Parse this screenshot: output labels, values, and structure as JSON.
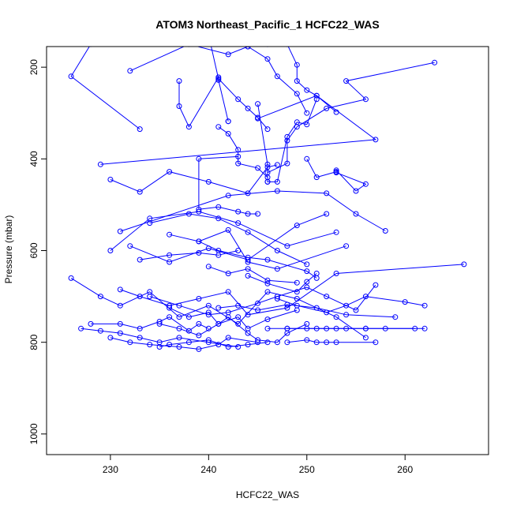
{
  "chart_data": {
    "type": "line",
    "title": "ATOM3 Northeast_Pacific_1 HCFC22_WAS",
    "xlabel": "HCFC22_WAS",
    "ylabel": "Pressure (mbar)",
    "xlim": [
      223.5,
      268.5
    ],
    "ylim": [
      1045,
      155
    ],
    "y_reversed": true,
    "x_ticks": [
      230,
      240,
      250,
      260
    ],
    "y_ticks": [
      200,
      400,
      600,
      800,
      1000
    ],
    "grid": false,
    "legend": "none",
    "color": "#0000ff",
    "marker": "open-circle",
    "series": [
      {
        "x": [
          228,
          226,
          233
        ],
        "y": [
          150,
          220,
          335
        ]
      },
      {
        "x": [
          232,
          238,
          242,
          244,
          246
        ],
        "y": [
          208,
          150,
          172,
          155,
          150
        ]
      },
      {
        "x": [
          237,
          237,
          238,
          241,
          241,
          242,
          242
        ],
        "y": [
          230,
          285,
          330,
          222,
          228,
          318,
          318
        ]
      },
      {
        "x": [
          240,
          241,
          243,
          244,
          245,
          246
        ],
        "y": [
          130,
          225,
          270,
          290,
          310,
          335
        ]
      },
      {
        "x": [
          248,
          249,
          249,
          250,
          251,
          253
        ],
        "y": [
          150,
          195,
          230,
          250,
          262,
          298
        ]
      },
      {
        "x": [
          229,
          257,
          251,
          245
        ],
        "y": [
          412,
          358,
          262,
          312
        ]
      },
      {
        "x": [
          230,
          233,
          236,
          240,
          244,
          246,
          247
        ],
        "y": [
          445,
          472,
          428,
          450,
          475,
          418,
          413
        ]
      },
      {
        "x": [
          244,
          246,
          247,
          249,
          250
        ],
        "y": [
          155,
          182,
          220,
          258,
          300
        ]
      },
      {
        "x": [
          245,
          246,
          246,
          247,
          248,
          249,
          250,
          251
        ],
        "y": [
          280,
          412,
          450,
          450,
          352,
          320,
          325,
          270
        ]
      },
      {
        "x": [
          263,
          254,
          256,
          252,
          249,
          248,
          248,
          246
        ],
        "y": [
          190,
          230,
          270,
          290,
          330,
          360,
          410,
          430
        ]
      },
      {
        "x": [
          243,
          239,
          239,
          241,
          243,
          244,
          245
        ],
        "y": [
          395,
          400,
          510,
          505,
          515,
          520,
          520
        ]
      },
      {
        "x": [
          241,
          242,
          243,
          243,
          245,
          246,
          246
        ],
        "y": [
          330,
          345,
          380,
          410,
          420,
          440,
          450
        ]
      },
      {
        "x": [
          250,
          251,
          253,
          253,
          255,
          256,
          253
        ],
        "y": [
          400,
          440,
          428,
          425,
          470,
          455,
          430
        ]
      },
      {
        "x": [
          231,
          242,
          247,
          252,
          255,
          258
        ],
        "y": [
          558,
          480,
          470,
          475,
          520,
          557
        ]
      },
      {
        "x": [
          234,
          238,
          241,
          244,
          247,
          250
        ],
        "y": [
          540,
          520,
          530,
          560,
          600,
          630
        ]
      },
      {
        "x": [
          232,
          236,
          240,
          244,
          249,
          252
        ],
        "y": [
          590,
          625,
          595,
          620,
          545,
          520
        ]
      },
      {
        "x": [
          230,
          234,
          239,
          243,
          248,
          253
        ],
        "y": [
          600,
          530,
          515,
          540,
          590,
          560
        ]
      },
      {
        "x": [
          236,
          239,
          242,
          244,
          247,
          254
        ],
        "y": [
          565,
          580,
          555,
          625,
          640,
          590
        ]
      },
      {
        "x": [
          226,
          229,
          231,
          234,
          237,
          240,
          243,
          246,
          249,
          253,
          256
        ],
        "y": [
          660,
          700,
          720,
          690,
          745,
          720,
          760,
          690,
          705,
          745,
          790
        ]
      },
      {
        "x": [
          231,
          233,
          236,
          239,
          242,
          244,
          248,
          253,
          266
        ],
        "y": [
          685,
          700,
          720,
          705,
          690,
          740,
          725,
          650,
          630
        ]
      },
      {
        "x": [
          234,
          237,
          240,
          242,
          245,
          247,
          250,
          252,
          255,
          257
        ],
        "y": [
          700,
          720,
          740,
          735,
          715,
          700,
          680,
          700,
          730,
          675
        ]
      },
      {
        "x": [
          236,
          238,
          240,
          241,
          243,
          244,
          246,
          249
        ],
        "y": [
          725,
          745,
          735,
          760,
          745,
          770,
          750,
          730
        ]
      },
      {
        "x": [
          235,
          237,
          239,
          241,
          242,
          244,
          245,
          247,
          248,
          250
        ],
        "y": [
          760,
          770,
          785,
          760,
          745,
          780,
          795,
          800,
          780,
          760
        ]
      },
      {
        "x": [
          228,
          231,
          233,
          235,
          236,
          238,
          239,
          240
        ],
        "y": [
          760,
          760,
          770,
          755,
          745,
          775,
          760,
          770
        ]
      },
      {
        "x": [
          227,
          229,
          231,
          233,
          235,
          237,
          240,
          243
        ],
        "y": [
          770,
          775,
          780,
          790,
          800,
          790,
          800,
          810
        ]
      },
      {
        "x": [
          230,
          232,
          234,
          237,
          239,
          241,
          242,
          245
        ],
        "y": [
          790,
          800,
          805,
          810,
          815,
          805,
          790,
          800
        ]
      },
      {
        "x": [
          235,
          236,
          238,
          240,
          242,
          244,
          246
        ],
        "y": [
          810,
          805,
          800,
          795,
          810,
          805,
          800
        ]
      },
      {
        "x": [
          248,
          250,
          252,
          254,
          256,
          258,
          261
        ],
        "y": [
          770,
          770,
          770,
          770,
          770,
          770,
          770
        ]
      },
      {
        "x": [
          246,
          248,
          251,
          253,
          256,
          262
        ],
        "y": [
          770,
          770,
          770,
          770,
          770,
          770
        ]
      },
      {
        "x": [
          248,
          250,
          251,
          252,
          253,
          257
        ],
        "y": [
          800,
          795,
          800,
          800,
          800,
          800
        ]
      },
      {
        "x": [
          241,
          243,
          245,
          248,
          251,
          254,
          259
        ],
        "y": [
          725,
          720,
          730,
          718,
          725,
          740,
          745
        ]
      },
      {
        "x": [
          247,
          249,
          252,
          254,
          256,
          260,
          262
        ],
        "y": [
          705,
          720,
          735,
          720,
          700,
          712,
          720
        ]
      },
      {
        "x": [
          233,
          236,
          239,
          241,
          243
        ],
        "y": [
          620,
          610,
          605,
          610,
          600
        ]
      },
      {
        "x": [
          240,
          242,
          244,
          246,
          249
        ],
        "y": [
          635,
          650,
          640,
          665,
          670
        ]
      },
      {
        "x": [
          239,
          241,
          244,
          246,
          250,
          251
        ],
        "y": [
          580,
          600,
          615,
          620,
          645,
          660
        ]
      },
      {
        "x": [
          244,
          246,
          249,
          250,
          251
        ],
        "y": [
          655,
          672,
          690,
          668,
          650
        ]
      }
    ]
  }
}
